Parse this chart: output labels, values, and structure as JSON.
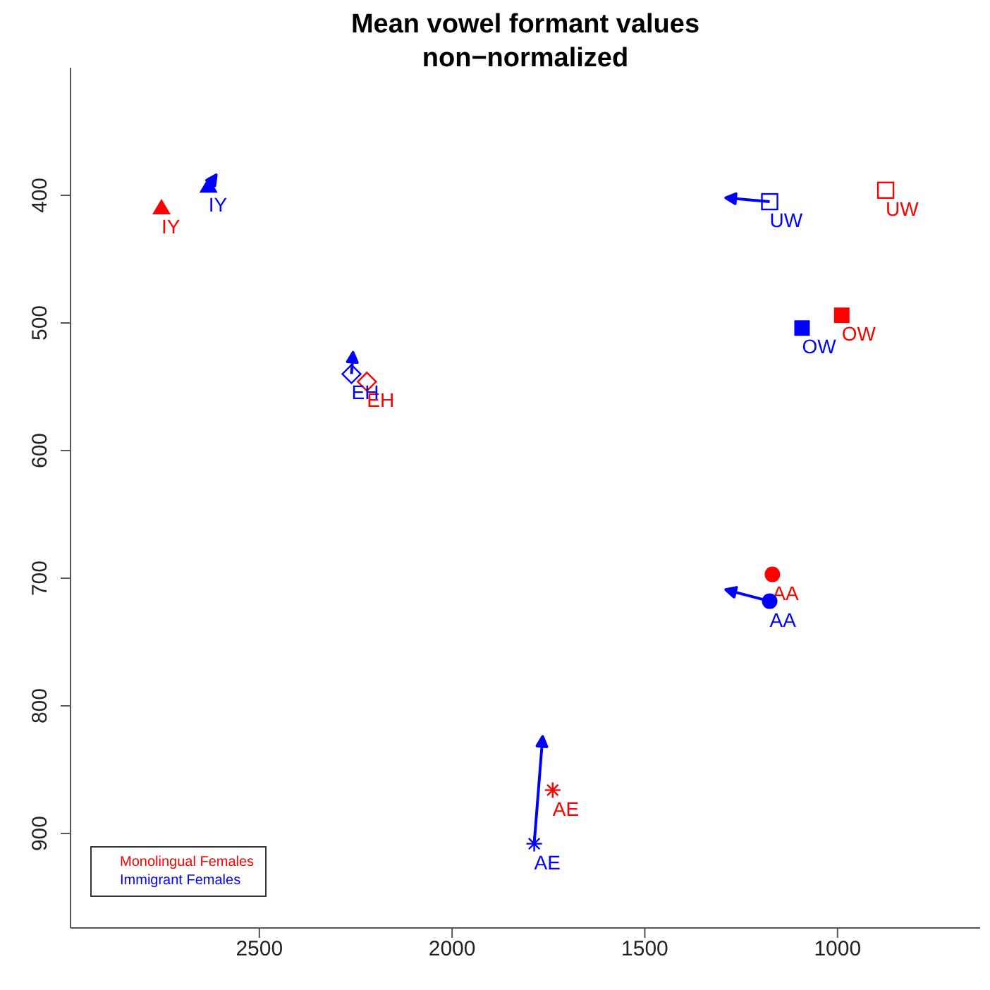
{
  "chart_data": {
    "type": "scatter",
    "title": "Mean vowel formant values",
    "subtitle": "non−normalized",
    "xlim": [
      2990,
      630
    ],
    "xticks": [
      2500,
      2000,
      1500,
      1000
    ],
    "ylim": [
      974,
      300
    ],
    "yticks": [
      400,
      500,
      600,
      700,
      800,
      900
    ],
    "legend": "bottom left",
    "series": [
      {
        "name": "Monolingual Females",
        "color": "#ff0000",
        "x": [
          2754,
          2221,
          875,
          989,
          1169,
          1739
        ],
        "values": [
          410,
          546,
          396,
          494,
          697,
          866
        ],
        "value_labels": [
          "IY",
          "EH",
          "UW",
          "OW",
          "AA",
          "AE"
        ],
        "marker": [
          "triangle",
          "diamond-open",
          "square-open",
          "square",
          "circle",
          "star"
        ]
      },
      {
        "name": "Immigrant Females",
        "color": "#0000ff",
        "x": [
          2632,
          2261,
          1176,
          1092,
          1176,
          1787
        ],
        "values": [
          393,
          540,
          405,
          504,
          718,
          908
        ],
        "value_labels": [
          "IY",
          "EH",
          "UW",
          "OW",
          "AA",
          "AE"
        ],
        "marker": [
          "triangle",
          "diamond-open",
          "square-open",
          "square",
          "circle",
          "star"
        ]
      },
      {
        "type": "line",
        "color": "#0000ff",
        "x": [
          2632,
          2612
        ],
        "values": [
          393,
          384
        ]
      },
      {
        "type": "line",
        "color": "#0000ff",
        "x": [
          2261,
          2257
        ],
        "values": [
          540,
          523
        ]
      },
      {
        "type": "line",
        "color": "#0000ff",
        "x": [
          1176,
          1290
        ],
        "values": [
          405,
          402
        ]
      },
      {
        "type": "line",
        "color": "#0000ff",
        "x": [
          1176,
          1290
        ],
        "values": [
          718,
          709
        ]
      },
      {
        "type": "line",
        "color": "#0000ff",
        "x": [
          1787,
          1765
        ],
        "values": [
          908,
          824
        ]
      }
    ]
  }
}
